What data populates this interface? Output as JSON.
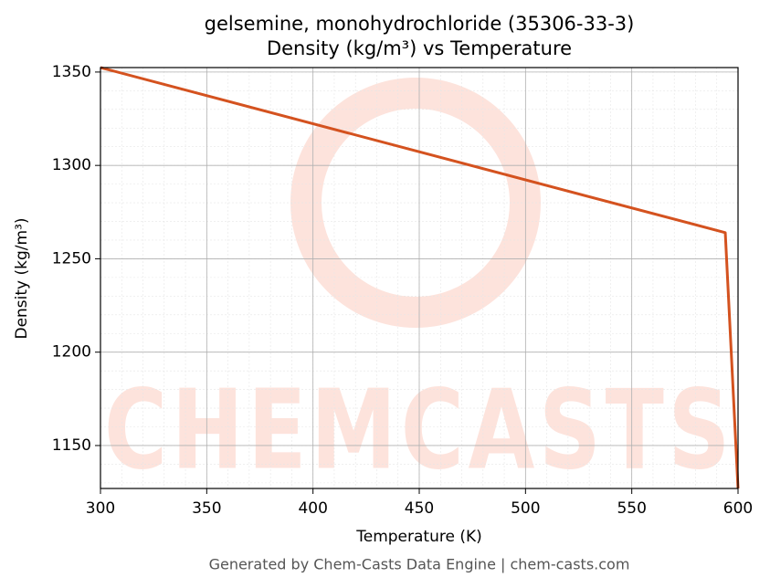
{
  "chart_data": {
    "type": "line",
    "title": "gelsemine, monohydrochloride (35306-33-3)",
    "subtitle": "Density (kg/m³) vs Temperature",
    "x_label": "Temperature (K)",
    "y_label": "Density (kg/m³)",
    "footer": "Generated by Chem-Casts Data Engine | chem-casts.com",
    "watermark": "CHEMCASTS",
    "x": [
      300,
      594,
      600
    ],
    "series": [
      {
        "name": "Density",
        "color": "#d4521f",
        "values": [
          1352.4,
          1264,
          1127
        ]
      }
    ],
    "xlim": [
      300,
      600
    ],
    "ylim": [
      1127,
      1352.4
    ],
    "xticks": [
      300,
      350,
      400,
      450,
      500,
      550,
      600
    ],
    "yticks": [
      1150,
      1200,
      1250,
      1300,
      1350
    ],
    "grid": true
  }
}
